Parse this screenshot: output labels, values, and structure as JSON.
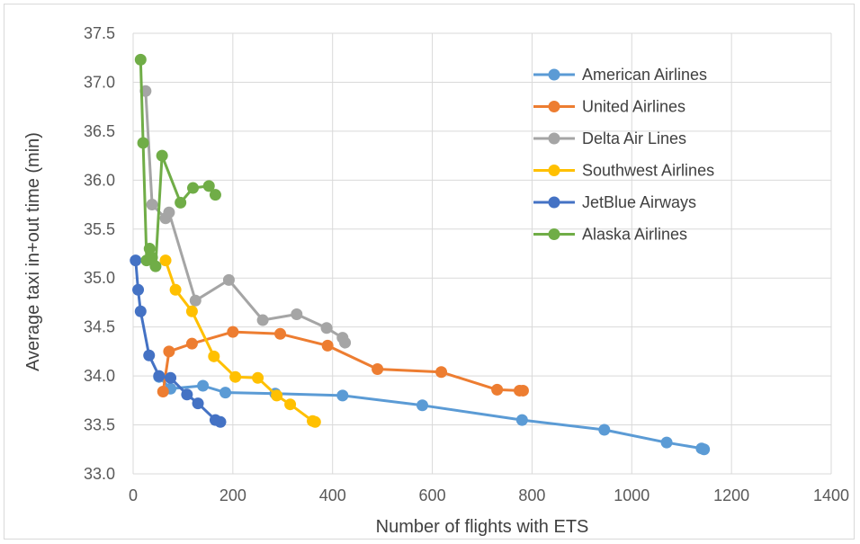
{
  "chart_data": {
    "type": "line",
    "title": "",
    "xlabel": "Number of flights with ETS",
    "ylabel": "Average taxi in+out time (min)",
    "xlim": [
      0,
      1400
    ],
    "ylim": [
      33.0,
      37.5
    ],
    "x_ticks": [
      0,
      200,
      400,
      600,
      800,
      1000,
      1200,
      1400
    ],
    "y_ticks": [
      33.0,
      33.5,
      34.0,
      34.5,
      35.0,
      35.5,
      36.0,
      36.5,
      37.0,
      37.5
    ],
    "x_tick_labels": [
      "0",
      "200",
      "400",
      "600",
      "800",
      "1000",
      "1200",
      "1400"
    ],
    "y_tick_labels": [
      "33.0",
      "33.5",
      "34.0",
      "34.5",
      "35.0",
      "35.5",
      "36.0",
      "36.5",
      "37.0",
      "37.5"
    ],
    "grid": true,
    "legend_position": "top-right",
    "series": [
      {
        "name": "American Airlines",
        "color": "#5b9bd5",
        "points": [
          [
            52,
            33.99
          ],
          [
            75,
            33.87
          ],
          [
            140,
            33.9
          ],
          [
            185,
            33.83
          ],
          [
            285,
            33.82
          ],
          [
            420,
            33.8
          ],
          [
            580,
            33.7
          ],
          [
            780,
            33.55
          ],
          [
            945,
            33.45
          ],
          [
            1070,
            33.32
          ],
          [
            1140,
            33.26
          ],
          [
            1145,
            33.25
          ]
        ]
      },
      {
        "name": "United Airlines",
        "color": "#ed7d31",
        "points": [
          [
            60,
            33.84
          ],
          [
            72,
            34.25
          ],
          [
            118,
            34.33
          ],
          [
            200,
            34.45
          ],
          [
            295,
            34.43
          ],
          [
            390,
            34.31
          ],
          [
            490,
            34.07
          ],
          [
            618,
            34.04
          ],
          [
            730,
            33.86
          ],
          [
            775,
            33.85
          ],
          [
            782,
            33.85
          ]
        ]
      },
      {
        "name": "Delta Air Lines",
        "color": "#a5a5a5",
        "points": [
          [
            25,
            36.91
          ],
          [
            38,
            35.75
          ],
          [
            65,
            35.61
          ],
          [
            72,
            35.67
          ],
          [
            125,
            34.77
          ],
          [
            192,
            34.98
          ],
          [
            260,
            34.57
          ],
          [
            328,
            34.63
          ],
          [
            388,
            34.49
          ],
          [
            420,
            34.39
          ],
          [
            425,
            34.34
          ]
        ]
      },
      {
        "name": "Southwest Airlines",
        "color": "#ffc000",
        "points": [
          [
            65,
            35.18
          ],
          [
            85,
            34.88
          ],
          [
            118,
            34.66
          ],
          [
            162,
            34.2
          ],
          [
            205,
            33.99
          ],
          [
            250,
            33.98
          ],
          [
            288,
            33.8
          ],
          [
            315,
            33.71
          ],
          [
            360,
            33.54
          ],
          [
            365,
            33.53
          ]
        ]
      },
      {
        "name": "JetBlue Airways",
        "color": "#4472c4",
        "points": [
          [
            5,
            35.18
          ],
          [
            10,
            34.88
          ],
          [
            15,
            34.66
          ],
          [
            32,
            34.21
          ],
          [
            52,
            34.0
          ],
          [
            75,
            33.98
          ],
          [
            108,
            33.81
          ],
          [
            130,
            33.72
          ],
          [
            165,
            33.55
          ],
          [
            175,
            33.53
          ]
        ]
      },
      {
        "name": "Alaska Airlines",
        "color": "#70ad47",
        "points": [
          [
            15,
            37.23
          ],
          [
            20,
            36.38
          ],
          [
            27,
            35.18
          ],
          [
            33,
            35.3
          ],
          [
            38,
            35.21
          ],
          [
            45,
            35.12
          ],
          [
            58,
            36.25
          ],
          [
            95,
            35.77
          ],
          [
            120,
            35.92
          ],
          [
            152,
            35.94
          ],
          [
            165,
            35.85
          ]
        ]
      }
    ]
  }
}
